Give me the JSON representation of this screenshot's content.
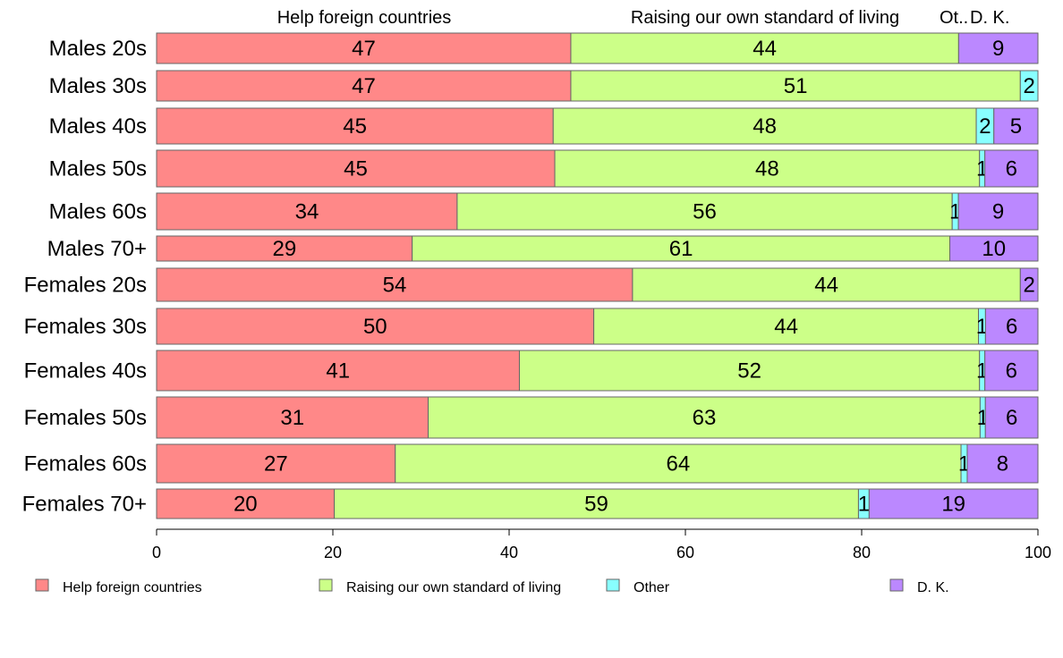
{
  "chart_data": {
    "type": "bar",
    "orientation": "horizontal",
    "stacked": true,
    "xlim": [
      0,
      100
    ],
    "x_ticks": [
      0,
      20,
      40,
      60,
      80,
      100
    ],
    "grid": false,
    "legend_position": "bottom",
    "categories": [
      "Males 20s",
      "Males 30s",
      "Males 40s",
      "Males 50s",
      "Males 60s",
      "Males 70+",
      "Females 20s",
      "Females 30s",
      "Females 40s",
      "Females 50s",
      "Females 60s",
      "Females 70+"
    ],
    "top_labels": [
      "Help foreign countries",
      "Raising our own standard of living",
      "Ot..",
      "D. K."
    ],
    "series": [
      {
        "name": "Help foreign countries",
        "color": "#ff8888",
        "values": [
          47,
          47,
          45,
          45,
          34,
          29,
          54,
          50,
          41,
          31,
          27,
          20
        ],
        "labels": [
          "47",
          "47",
          "45",
          "45",
          "34",
          "29",
          "54",
          "50",
          "41",
          "31",
          "27",
          "20"
        ]
      },
      {
        "name": "Raising our own standard of living",
        "color": "#ccff88",
        "values": [
          44,
          51,
          48,
          48,
          56,
          61,
          44,
          44,
          52,
          63,
          64,
          59
        ],
        "labels": [
          "44",
          "51",
          "48",
          "48",
          "56",
          "61",
          "44",
          "44",
          "52",
          "63",
          "64",
          "59"
        ]
      },
      {
        "name": "Other",
        "color": "#88ffff",
        "values": [
          0,
          2,
          2,
          0.6,
          0.7,
          0,
          0,
          0.8,
          0.6,
          0.6,
          0.7,
          1.2
        ],
        "labels": [
          "",
          "2",
          "2",
          "1",
          "1",
          "",
          "",
          "1",
          "1",
          "1",
          "1",
          "1"
        ]
      },
      {
        "name": "D. K.",
        "color": "#bb88ff",
        "values": [
          9,
          0,
          5,
          6,
          9,
          10,
          2,
          6,
          6,
          6,
          8,
          19
        ],
        "labels": [
          "9",
          "",
          "5",
          "6",
          "9",
          "10",
          "2",
          "6",
          "6",
          "6",
          "8",
          "19"
        ]
      }
    ]
  }
}
